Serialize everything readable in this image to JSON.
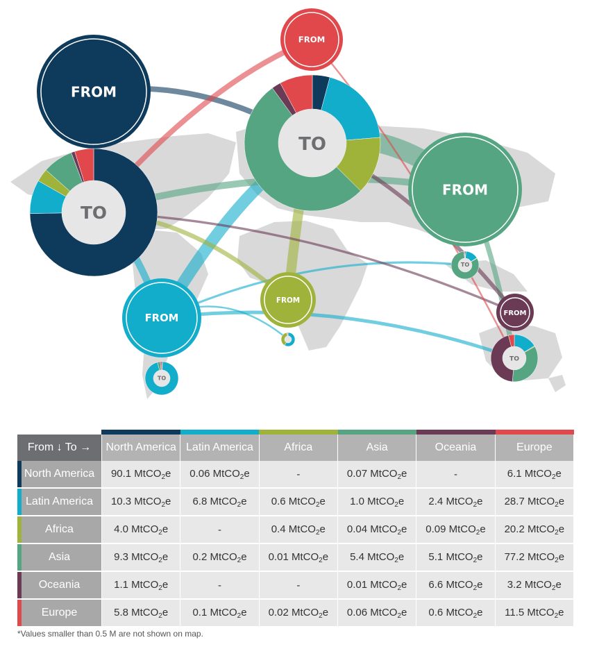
{
  "map": {
    "from_label": "FROM",
    "to_label": "TO"
  },
  "colors": {
    "North America": "#0e3a5c",
    "Latin America": "#12adcb",
    "Africa": "#9fb33a",
    "Asia": "#55a582",
    "Oceania": "#6b3a55",
    "Europe": "#e0484b"
  },
  "chart_data": {
    "type": "table",
    "unit_prefix": "MtCO",
    "unit_sub": "2",
    "unit_suffix": "e",
    "corner_label": "From ↓ To →",
    "columns": [
      "North America",
      "Latin America",
      "Africa",
      "Asia",
      "Oceania",
      "Europe"
    ],
    "rows": [
      {
        "from": "North America",
        "values": [
          "90.1",
          "0.06",
          "-",
          "0.07",
          "-",
          "6.1"
        ]
      },
      {
        "from": "Latin America",
        "values": [
          "10.3",
          "6.8",
          "0.6",
          "1.0",
          "2.4",
          "28.7"
        ]
      },
      {
        "from": "Africa",
        "values": [
          "4.0",
          "-",
          "0.4",
          "0.04",
          "0.09",
          "20.2"
        ]
      },
      {
        "from": "Asia",
        "values": [
          "9.3",
          "0.2",
          "0.01",
          "5.4",
          "5.1",
          "77.2"
        ]
      },
      {
        "from": "Oceania",
        "values": [
          "1.1",
          "-",
          "-",
          "0.01",
          "6.6",
          "3.2"
        ]
      },
      {
        "from": "Europe",
        "values": [
          "5.8",
          "0.1",
          "0.02",
          "0.06",
          "0.6",
          "11.5"
        ]
      }
    ],
    "footnote": "*Values smaller than 0.5 M are not shown on map."
  }
}
